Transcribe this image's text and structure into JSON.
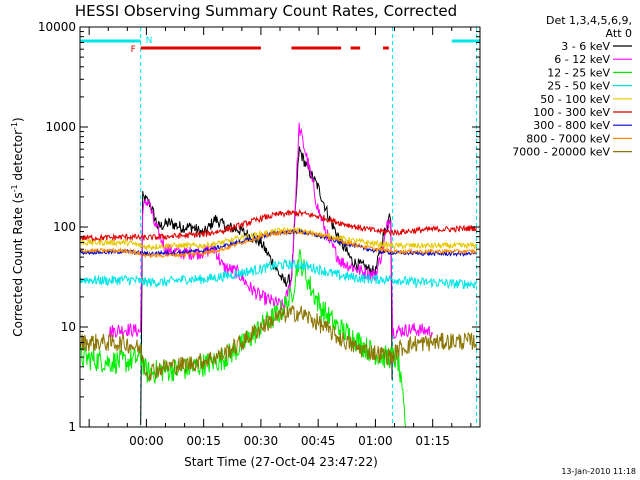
{
  "chart_data": {
    "type": "line",
    "title": "HESSI Observing Summary Count Rates, Corrected",
    "xlabel": "Start Time (27-Oct-04 23:47:22)",
    "ylabel_main": "Corrected Count Rate (s",
    "ylabel_sup1": "-1",
    "ylabel_mid": " detector",
    "ylabel_sup2": "-1",
    "ylabel_end": ")",
    "y_scale": "log",
    "ylim": [
      1,
      10000
    ],
    "xlim_minutes": [
      -17.4,
      87.4
    ],
    "y_tick_labels": [
      "1",
      "10",
      "100",
      "1000",
      "10000"
    ],
    "x_tick_labels": [
      "00:00",
      "00:15",
      "00:30",
      "00:45",
      "01:00",
      "01:15"
    ],
    "x_ticks_minutes": [
      0,
      15,
      30,
      45,
      60,
      75
    ],
    "grid": false,
    "legend": {
      "placement": "right, outside plot",
      "header_line1": "Det 1,3,4,5,6,9,",
      "header_line2": "Att 0",
      "entries": [
        {
          "name": "3 - 6 keV",
          "color": "#000000"
        },
        {
          "name": "6 - 12 keV",
          "color": "#ff00ff"
        },
        {
          "name": "12 - 25 keV",
          "color": "#00ee00"
        },
        {
          "name": "25 - 50 keV",
          "color": "#00e5e5"
        },
        {
          "name": "50 - 100 keV",
          "color": "#e6c800"
        },
        {
          "name": "100 - 300 keV",
          "color": "#e00000"
        },
        {
          "name": "300 - 800 keV",
          "color": "#0000cc"
        },
        {
          "name": "800 - 7000 keV",
          "color": "#ff8c00"
        },
        {
          "name": "7000 - 20000 keV",
          "color": "#8b7500"
        }
      ]
    },
    "flags": {
      "N_label": "N",
      "F_label": "F",
      "N_color": "#00e5e5",
      "F_color": "#e00000",
      "N_segments_minutes": [
        [
          -17.4,
          -1.5
        ],
        [
          80,
          87.4
        ]
      ],
      "F_segments_minutes": [
        [
          -1.5,
          30
        ],
        [
          38,
          51
        ],
        [
          53.5,
          56
        ],
        [
          62,
          63.5
        ]
      ]
    },
    "night_boundaries_minutes": [
      -1.5,
      64.5,
      86.5
    ],
    "series": [
      {
        "name": "3 - 6 keV",
        "color": "#000000",
        "points": [
          [
            -1.5,
            1
          ],
          [
            -1,
            200
          ],
          [
            1,
            170
          ],
          [
            3,
            100
          ],
          [
            6,
            110
          ],
          [
            9,
            100
          ],
          [
            12,
            100
          ],
          [
            15,
            85
          ],
          [
            18,
            120
          ],
          [
            21,
            100
          ],
          [
            24,
            95
          ],
          [
            27,
            82
          ],
          [
            30,
            70
          ],
          [
            33,
            45
          ],
          [
            36,
            28
          ],
          [
            38,
            30
          ],
          [
            40,
            600
          ],
          [
            42,
            400
          ],
          [
            45,
            250
          ],
          [
            48,
            120
          ],
          [
            51,
            70
          ],
          [
            54,
            45
          ],
          [
            57,
            40
          ],
          [
            60,
            35
          ],
          [
            62,
            80
          ],
          [
            63,
            100
          ],
          [
            64,
            150
          ],
          [
            64.5,
            1
          ]
        ]
      },
      {
        "name": "6 - 12 keV",
        "color": "#ff00ff",
        "points": [
          [
            -10,
            9
          ],
          [
            -5,
            9.5
          ],
          [
            -1.5,
            9
          ],
          [
            -1,
            150
          ],
          [
            0.5,
            190
          ],
          [
            2,
            110
          ],
          [
            5,
            60
          ],
          [
            9,
            55
          ],
          [
            13,
            55
          ],
          [
            18,
            60
          ],
          [
            20,
            40
          ],
          [
            24,
            35
          ],
          [
            27,
            25
          ],
          [
            30,
            20
          ],
          [
            33,
            18
          ],
          [
            36,
            16
          ],
          [
            38,
            30
          ],
          [
            40,
            1000
          ],
          [
            42,
            500
          ],
          [
            45,
            150
          ],
          [
            48,
            70
          ],
          [
            51,
            45
          ],
          [
            54,
            40
          ],
          [
            57,
            35
          ],
          [
            60,
            33
          ],
          [
            62,
            60
          ],
          [
            63,
            100
          ],
          [
            64,
            130
          ],
          [
            64.5,
            9
          ],
          [
            70,
            9.5
          ],
          [
            75,
            9
          ]
        ]
      },
      {
        "name": "12 - 25 keV",
        "color": "#00ee00",
        "points": [
          [
            -17.4,
            5
          ],
          [
            -10,
            4.5
          ],
          [
            -5,
            4.5
          ],
          [
            -1.5,
            5
          ],
          [
            0,
            3.5
          ],
          [
            5,
            3.7
          ],
          [
            10,
            3.8
          ],
          [
            15,
            4.2
          ],
          [
            20,
            4.8
          ],
          [
            25,
            6.5
          ],
          [
            30,
            10
          ],
          [
            35,
            14
          ],
          [
            38,
            20
          ],
          [
            40,
            50
          ],
          [
            43,
            25
          ],
          [
            46,
            15
          ],
          [
            50,
            10
          ],
          [
            54,
            8
          ],
          [
            58,
            6
          ],
          [
            62,
            5
          ],
          [
            64.5,
            5
          ],
          [
            66,
            4.5
          ],
          [
            68,
            1
          ]
        ]
      },
      {
        "name": "25 - 50 keV",
        "color": "#00e5e5",
        "points": [
          [
            -17.4,
            30
          ],
          [
            -10,
            29
          ],
          [
            -5,
            30
          ],
          [
            0,
            28
          ],
          [
            5,
            28
          ],
          [
            10,
            30
          ],
          [
            15,
            30
          ],
          [
            20,
            32
          ],
          [
            25,
            35
          ],
          [
            30,
            38
          ],
          [
            35,
            42
          ],
          [
            40,
            42
          ],
          [
            45,
            38
          ],
          [
            50,
            33
          ],
          [
            55,
            31
          ],
          [
            60,
            30
          ],
          [
            65,
            30
          ],
          [
            70,
            28
          ],
          [
            75,
            28
          ],
          [
            80,
            27
          ],
          [
            86.5,
            27
          ]
        ]
      },
      {
        "name": "50 - 100 keV",
        "color": "#e6c800",
        "points": [
          [
            -17.4,
            70
          ],
          [
            -10,
            70
          ],
          [
            -5,
            70
          ],
          [
            0,
            63
          ],
          [
            5,
            65
          ],
          [
            10,
            65
          ],
          [
            15,
            65
          ],
          [
            20,
            70
          ],
          [
            25,
            78
          ],
          [
            30,
            85
          ],
          [
            35,
            92
          ],
          [
            40,
            92
          ],
          [
            45,
            85
          ],
          [
            50,
            78
          ],
          [
            55,
            72
          ],
          [
            60,
            68
          ],
          [
            65,
            65
          ],
          [
            70,
            65
          ],
          [
            75,
            65
          ],
          [
            80,
            65
          ],
          [
            86.5,
            65
          ]
        ]
      },
      {
        "name": "100 - 300 keV",
        "color": "#e00000",
        "points": [
          [
            -17.4,
            78
          ],
          [
            -10,
            78
          ],
          [
            -5,
            80
          ],
          [
            0,
            78
          ],
          [
            5,
            80
          ],
          [
            10,
            82
          ],
          [
            15,
            85
          ],
          [
            20,
            92
          ],
          [
            25,
            105
          ],
          [
            30,
            122
          ],
          [
            35,
            135
          ],
          [
            40,
            138
          ],
          [
            45,
            128
          ],
          [
            50,
            112
          ],
          [
            55,
            100
          ],
          [
            60,
            92
          ],
          [
            65,
            88
          ],
          [
            70,
            92
          ],
          [
            75,
            95
          ],
          [
            80,
            95
          ],
          [
            86.5,
            98
          ]
        ]
      },
      {
        "name": "300 - 800 keV",
        "color": "#0000cc",
        "points": [
          [
            -17.4,
            56
          ],
          [
            -10,
            56
          ],
          [
            -5,
            57
          ],
          [
            0,
            54
          ],
          [
            5,
            55
          ],
          [
            10,
            56
          ],
          [
            15,
            58
          ],
          [
            20,
            64
          ],
          [
            25,
            72
          ],
          [
            30,
            80
          ],
          [
            35,
            88
          ],
          [
            40,
            90
          ],
          [
            45,
            82
          ],
          [
            50,
            72
          ],
          [
            55,
            64
          ],
          [
            60,
            58
          ],
          [
            65,
            55
          ],
          [
            70,
            55
          ],
          [
            75,
            54
          ],
          [
            80,
            54
          ],
          [
            86.5,
            54
          ]
        ]
      },
      {
        "name": "800 - 7000 keV",
        "color": "#ff8c00",
        "points": [
          [
            -17.4,
            58
          ],
          [
            -10,
            58
          ],
          [
            -5,
            58
          ],
          [
            0,
            52
          ],
          [
            5,
            52
          ],
          [
            10,
            53
          ],
          [
            15,
            55
          ],
          [
            20,
            60
          ],
          [
            25,
            70
          ],
          [
            30,
            80
          ],
          [
            35,
            88
          ],
          [
            40,
            90
          ],
          [
            45,
            84
          ],
          [
            50,
            74
          ],
          [
            55,
            66
          ],
          [
            60,
            60
          ],
          [
            65,
            57
          ],
          [
            70,
            57
          ],
          [
            75,
            57
          ],
          [
            80,
            57
          ],
          [
            86.5,
            57
          ]
        ]
      },
      {
        "name": "7000 - 20000 keV",
        "color": "#8b7500",
        "points": [
          [
            -17.4,
            7
          ],
          [
            -10,
            7
          ],
          [
            -5,
            6.8
          ],
          [
            -1.5,
            6
          ],
          [
            0,
            3.5
          ],
          [
            5,
            4
          ],
          [
            10,
            4.2
          ],
          [
            15,
            4.6
          ],
          [
            20,
            5.3
          ],
          [
            25,
            7
          ],
          [
            30,
            10
          ],
          [
            35,
            13
          ],
          [
            40,
            14
          ],
          [
            45,
            11
          ],
          [
            50,
            8
          ],
          [
            55,
            6.2
          ],
          [
            60,
            5.5
          ],
          [
            64.5,
            5
          ],
          [
            66,
            6
          ],
          [
            70,
            6.8
          ],
          [
            75,
            7
          ],
          [
            80,
            7.2
          ],
          [
            86.5,
            7.2
          ]
        ]
      }
    ]
  },
  "footer": {
    "timestamp": "13-Jan-2010 11:18"
  }
}
